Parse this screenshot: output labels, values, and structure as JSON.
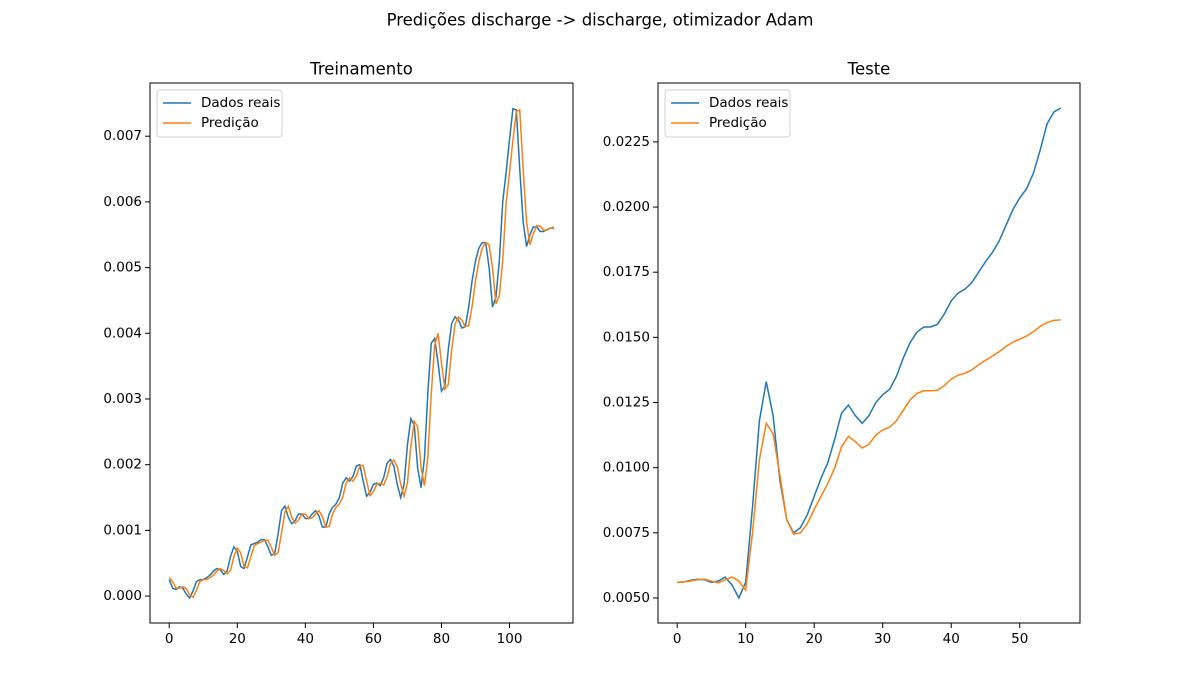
{
  "title": "Predições discharge -> discharge, otimizador Adam",
  "chart_data": [
    {
      "type": "line",
      "title": "Treinamento",
      "legend": "upper left",
      "x": [
        0,
        1,
        2,
        3,
        4,
        5,
        6,
        7,
        8,
        9,
        10,
        11,
        12,
        13,
        14,
        15,
        16,
        17,
        18,
        19,
        20,
        21,
        22,
        23,
        24,
        25,
        26,
        27,
        28,
        29,
        30,
        31,
        32,
        33,
        34,
        35,
        36,
        37,
        38,
        39,
        40,
        41,
        42,
        43,
        44,
        45,
        46,
        47,
        48,
        49,
        50,
        51,
        52,
        53,
        54,
        55,
        56,
        57,
        58,
        59,
        60,
        61,
        62,
        63,
        64,
        65,
        66,
        67,
        68,
        69,
        70,
        71,
        72,
        73,
        74,
        75,
        76,
        77,
        78,
        79,
        80,
        81,
        82,
        83,
        84,
        85,
        86,
        87,
        88,
        89,
        90,
        91,
        92,
        93,
        94,
        95,
        96,
        97,
        98,
        99,
        100,
        101,
        102,
        103,
        104,
        105,
        106,
        107,
        108,
        109,
        110,
        111,
        112,
        113
      ],
      "series": [
        {
          "name": "Dados reais",
          "color": "#1f77b4",
          "values": [
            0.00025,
            0.00012,
            0.0001,
            0.00014,
            0.00012,
            3e-05,
            -3e-05,
            8e-05,
            0.00022,
            0.00025,
            0.00025,
            0.00028,
            0.00032,
            0.00038,
            0.00042,
            0.0004,
            0.00033,
            0.00038,
            0.0006,
            0.00075,
            0.00068,
            0.00045,
            0.00042,
            0.0006,
            0.00078,
            0.0008,
            0.00082,
            0.00086,
            0.00086,
            0.00075,
            0.00062,
            0.00065,
            0.00095,
            0.0013,
            0.00137,
            0.0012,
            0.0011,
            0.00115,
            0.00125,
            0.00125,
            0.00118,
            0.00118,
            0.00125,
            0.0013,
            0.00122,
            0.00105,
            0.00105,
            0.00125,
            0.00135,
            0.0014,
            0.0015,
            0.00172,
            0.0018,
            0.00175,
            0.00182,
            0.00198,
            0.002,
            0.00175,
            0.00152,
            0.00158,
            0.0017,
            0.00172,
            0.00168,
            0.0018,
            0.00202,
            0.00208,
            0.00198,
            0.0017,
            0.0015,
            0.0017,
            0.0023,
            0.0027,
            0.0026,
            0.00195,
            0.00165,
            0.0021,
            0.0031,
            0.00385,
            0.00392,
            0.00355,
            0.00312,
            0.0032,
            0.00375,
            0.00415,
            0.00425,
            0.0042,
            0.00408,
            0.0041,
            0.0044,
            0.0048,
            0.0051,
            0.0053,
            0.00538,
            0.00538,
            0.005,
            0.0044,
            0.00455,
            0.0051,
            0.006,
            0.00645,
            0.00695,
            0.00742,
            0.0074,
            0.0065,
            0.0057,
            0.00532,
            0.0055,
            0.00562,
            0.00562,
            0.00555,
            0.00555,
            0.00558,
            0.0056,
            0.0056
          ]
        },
        {
          "name": "Predição",
          "color": "#ff7f0e",
          "values": [
            0.00028,
            0.00022,
            0.00012,
            0.00012,
            0.00014,
            0.00011,
            2e-05,
            -2e-05,
            9e-05,
            0.00022,
            0.00025,
            0.00025,
            0.00028,
            0.00032,
            0.00038,
            0.00042,
            0.00039,
            0.00034,
            0.00039,
            0.0006,
            0.00073,
            0.00066,
            0.00045,
            0.00043,
            0.0006,
            0.00077,
            0.0008,
            0.00082,
            0.00085,
            0.00085,
            0.00074,
            0.00062,
            0.00066,
            0.00096,
            0.00128,
            0.00137,
            0.0012,
            0.00111,
            0.00116,
            0.00125,
            0.00125,
            0.00118,
            0.00119,
            0.00125,
            0.0013,
            0.00121,
            0.00105,
            0.00106,
            0.00125,
            0.00135,
            0.0014,
            0.00151,
            0.00172,
            0.0018,
            0.00175,
            0.00183,
            0.00198,
            0.00199,
            0.00175,
            0.00153,
            0.00159,
            0.0017,
            0.00172,
            0.00169,
            0.00181,
            0.00202,
            0.00207,
            0.00197,
            0.00171,
            0.00152,
            0.00172,
            0.00228,
            0.00266,
            0.00258,
            0.00196,
            0.00168,
            0.00212,
            0.00308,
            0.00382,
            0.004,
            0.00355,
            0.00315,
            0.00322,
            0.00375,
            0.00414,
            0.00425,
            0.0042,
            0.0041,
            0.00412,
            0.00441,
            0.0048,
            0.0051,
            0.0053,
            0.00538,
            0.00535,
            0.005,
            0.00445,
            0.00457,
            0.0051,
            0.00598,
            0.00645,
            0.00694,
            0.00738,
            0.0074,
            0.0065,
            0.0057,
            0.00535,
            0.00552,
            0.00564,
            0.00563,
            0.00557,
            0.00557,
            0.0056,
            0.00562
          ]
        }
      ],
      "xlim": [
        -5.65,
        118.65
      ],
      "xticks": [
        0,
        20,
        40,
        60,
        80,
        100
      ],
      "ylim": [
        -0.00041,
        0.00781
      ],
      "yticks": [
        {
          "value": 0,
          "label": "0.000"
        },
        0.001,
        0.002,
        0.003,
        0.004,
        0.005,
        0.006,
        0.007
      ]
    },
    {
      "type": "line",
      "title": "Teste",
      "legend": "upper left",
      "x": [
        0,
        1,
        2,
        3,
        4,
        5,
        6,
        7,
        8,
        9,
        10,
        11,
        12,
        13,
        14,
        15,
        16,
        17,
        18,
        19,
        20,
        21,
        22,
        23,
        24,
        25,
        26,
        27,
        28,
        29,
        30,
        31,
        32,
        33,
        34,
        35,
        36,
        37,
        38,
        39,
        40,
        41,
        42,
        43,
        44,
        45,
        46,
        47,
        48,
        49,
        50,
        51,
        52,
        53,
        54,
        55,
        56
      ],
      "series": [
        {
          "name": "Dados reais",
          "color": "#1f77b4",
          "values": [
            0.0056,
            0.00562,
            0.00568,
            0.00572,
            0.0057,
            0.0056,
            0.00565,
            0.0058,
            0.0055,
            0.005,
            0.0056,
            0.0085,
            0.0118,
            0.0133,
            0.012,
            0.0095,
            0.008,
            0.0075,
            0.0077,
            0.0082,
            0.0089,
            0.0096,
            0.0102,
            0.0111,
            0.0121,
            0.0124,
            0.012,
            0.0117,
            0.012,
            0.0125,
            0.0128,
            0.013,
            0.0135,
            0.0142,
            0.0148,
            0.0152,
            0.0154,
            0.0154,
            0.0155,
            0.0159,
            0.0164,
            0.0167,
            0.01685,
            0.0171,
            0.0175,
            0.0179,
            0.01825,
            0.0187,
            0.0193,
            0.0199,
            0.02035,
            0.0207,
            0.0213,
            0.0222,
            0.0232,
            0.02365,
            0.0238
          ]
        },
        {
          "name": "Predição",
          "color": "#ff7f0e",
          "values": [
            0.0056,
            0.00562,
            0.00565,
            0.0057,
            0.00572,
            0.00565,
            0.00558,
            0.0057,
            0.0058,
            0.00565,
            0.0053,
            0.0075,
            0.0103,
            0.0117,
            0.0113,
            0.0097,
            0.008,
            0.00745,
            0.0075,
            0.00785,
            0.0084,
            0.0089,
            0.0094,
            0.01,
            0.0108,
            0.0112,
            0.011,
            0.01075,
            0.0109,
            0.01125,
            0.01145,
            0.01155,
            0.0118,
            0.0122,
            0.0126,
            0.01285,
            0.01295,
            0.01295,
            0.01297,
            0.01315,
            0.0134,
            0.01355,
            0.01362,
            0.01375,
            0.01395,
            0.01412,
            0.01428,
            0.01445,
            0.01465,
            0.01482,
            0.01493,
            0.01505,
            0.01522,
            0.01542,
            0.01557,
            0.01565,
            0.01567
          ]
        }
      ],
      "xlim": [
        -2.8,
        58.8
      ],
      "xticks": [
        0,
        10,
        20,
        30,
        40,
        50
      ],
      "ylim": [
        0.00404,
        0.02476
      ],
      "yticks": [
        {
          "value": 0.005,
          "label": "0.0050"
        },
        0.0075,
        {
          "value": 0.01,
          "label": "0.0100"
        },
        0.0125,
        {
          "value": 0.015,
          "label": "0.0150"
        },
        0.0175,
        {
          "value": 0.02,
          "label": "0.0200"
        },
        0.0225
      ]
    }
  ]
}
